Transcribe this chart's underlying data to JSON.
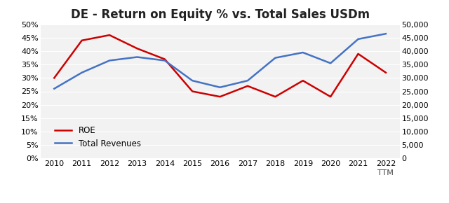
{
  "title": "DE - Return on Equity % vs. Total Sales USDm",
  "years": [
    2010,
    2011,
    2012,
    2013,
    2014,
    2015,
    2016,
    2017,
    2018,
    2019,
    2020,
    2021,
    2022
  ],
  "xlabel_extra": "TTM",
  "roe": [
    0.3,
    0.44,
    0.46,
    0.41,
    0.37,
    0.25,
    0.23,
    0.27,
    0.23,
    0.29,
    0.23,
    0.39,
    0.32
  ],
  "revenues": [
    26000,
    32000,
    36500,
    37800,
    36500,
    29000,
    26500,
    29000,
    37500,
    39500,
    35500,
    44500,
    46500
  ],
  "roe_color": "#cc0000",
  "rev_color": "#4472c4",
  "roe_label": "ROE",
  "rev_label": "Total Revenues",
  "yleft_min": 0.0,
  "yleft_max": 0.5,
  "yleft_ticks": [
    0.0,
    0.05,
    0.1,
    0.15,
    0.2,
    0.25,
    0.3,
    0.35,
    0.4,
    0.45,
    0.5
  ],
  "yright_min": 0,
  "yright_max": 50000,
  "yright_ticks": [
    0,
    5000,
    10000,
    15000,
    20000,
    25000,
    30000,
    35000,
    40000,
    45000,
    50000
  ],
  "background_color": "#ffffff",
  "plot_bg_color": "#f2f2f2",
  "title_fontsize": 12,
  "axis_fontsize": 8,
  "legend_fontsize": 8.5,
  "line_width": 1.8
}
